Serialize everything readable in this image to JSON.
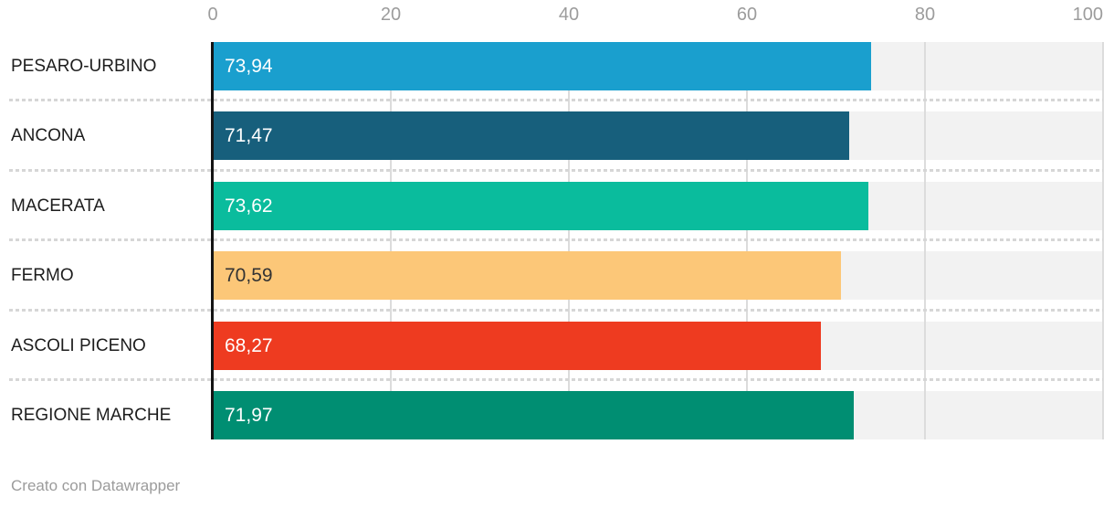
{
  "chart_data": {
    "type": "bar",
    "orientation": "horizontal",
    "title": "",
    "categories": [
      "PESARO-URBINO",
      "ANCONA",
      "MACERATA",
      "FERMO",
      "ASCOLI PICENO",
      "REGIONE MARCHE"
    ],
    "values": [
      73.94,
      71.47,
      73.62,
      70.59,
      68.27,
      71.97
    ],
    "value_labels": [
      "73,94",
      "71,47",
      "73,62",
      "70,59",
      "68,27",
      "71,97"
    ],
    "bar_colors": [
      "#1a9fce",
      "#175f7c",
      "#0abc9d",
      "#fcc778",
      "#ee3b20",
      "#008e72"
    ],
    "value_text_colors": [
      "#ffffff",
      "#ffffff",
      "#ffffff",
      "#333333",
      "#ffffff",
      "#ffffff"
    ],
    "xlabel": "",
    "ylabel": "",
    "xlim": [
      0,
      100
    ],
    "xticks": [
      0,
      20,
      40,
      60,
      80,
      100
    ],
    "grid": "vertical-gridlines-with-row-tracks",
    "legend_position": "none",
    "track_color": "#f2f2f2",
    "gridline_color": "#dcdcdc",
    "axis_line_color": "#141414",
    "tick_text_color": "#9c9c9c",
    "category_text_color": "#1d1d1d",
    "separator_color": "#d6d6d6"
  },
  "footer": {
    "prefix": "Creato con ",
    "brand": "Datawrapper"
  }
}
